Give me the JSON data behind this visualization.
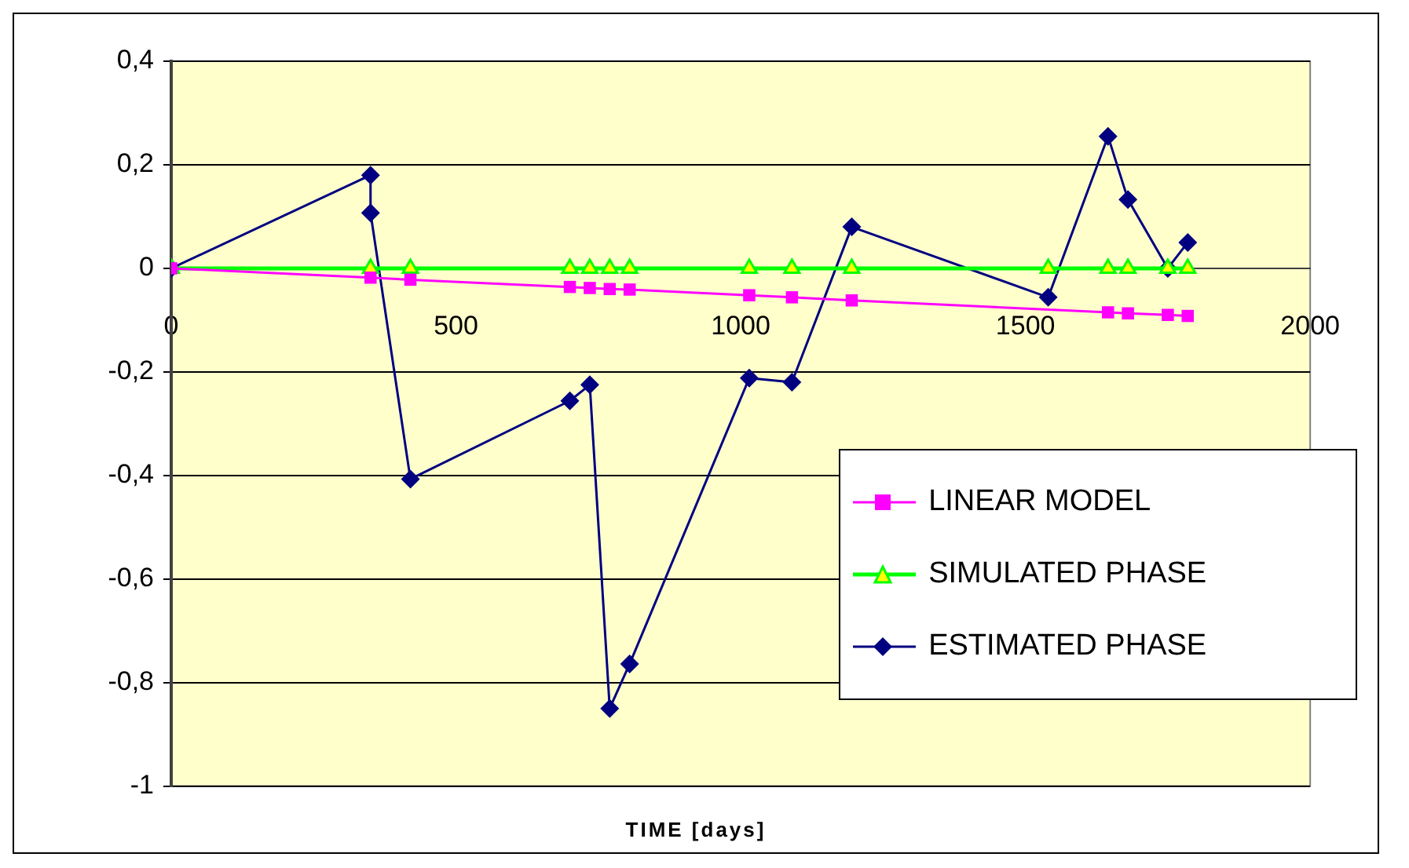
{
  "chart_data": {
    "type": "line",
    "xlabel": "TIME [days]",
    "xlim": [
      0,
      2000
    ],
    "xticks": [
      0,
      500,
      1000,
      1500,
      2000
    ],
    "ylim": [
      -1,
      0.4
    ],
    "yticks": [
      {
        "value": -1,
        "label": "-1"
      },
      {
        "value": -0.8,
        "label": "-0,8"
      },
      {
        "value": -0.6,
        "label": "-0,6"
      },
      {
        "value": -0.4,
        "label": "-0,4"
      },
      {
        "value": -0.2,
        "label": "-0,2"
      },
      {
        "value": 0,
        "label": "0"
      },
      {
        "value": 0.2,
        "label": "0,2"
      },
      {
        "value": 0.4,
        "label": "0,4"
      }
    ],
    "grid": "y",
    "legend": "bottom right",
    "line_style": "solid",
    "series": [
      {
        "name": "LINEAR MODEL",
        "color": "#ff00ff",
        "marker": "square",
        "x": [
          0,
          350,
          420,
          700,
          735,
          770,
          805,
          1015,
          1090,
          1195,
          1645,
          1680,
          1750,
          1785
        ],
        "values": [
          0,
          -0.018,
          -0.022,
          -0.036,
          -0.038,
          -0.04,
          -0.041,
          -0.052,
          -0.056,
          -0.062,
          -0.085,
          -0.087,
          -0.09,
          -0.092
        ]
      },
      {
        "name": "SIMULATED PHASE",
        "color": "#00ff00",
        "marker": "triangle",
        "x": [
          0,
          350,
          420,
          700,
          735,
          770,
          805,
          1015,
          1090,
          1195,
          1540,
          1645,
          1680,
          1750,
          1785
        ],
        "values": [
          0,
          0,
          0,
          0,
          0,
          0,
          0,
          0,
          0,
          0,
          0,
          0,
          0,
          0,
          0
        ]
      },
      {
        "name": "ESTIMATED PHASE",
        "color": "#000080",
        "marker": "diamond",
        "x": [
          0,
          350,
          350,
          420,
          700,
          735,
          770,
          805,
          1015,
          1090,
          1195,
          1540,
          1645,
          1680,
          1750,
          1785
        ],
        "values": [
          0,
          0.18,
          0.107,
          -0.407,
          -0.256,
          -0.225,
          -0.85,
          -0.764,
          -0.212,
          -0.22,
          0.08,
          -0.056,
          0.255,
          0.133,
          0,
          0.05
        ]
      }
    ]
  }
}
